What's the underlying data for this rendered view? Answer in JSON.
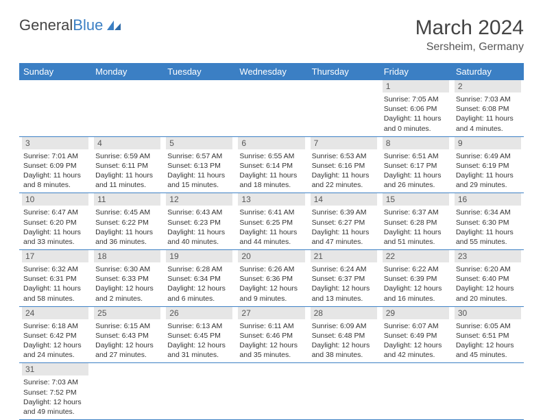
{
  "logo": {
    "text1": "General",
    "text2": "Blue"
  },
  "title": "March 2024",
  "location": "Sersheim, Germany",
  "header_color": "#3b7fc4",
  "daynum_bg": "#e6e6e6",
  "columns": [
    "Sunday",
    "Monday",
    "Tuesday",
    "Wednesday",
    "Thursday",
    "Friday",
    "Saturday"
  ],
  "weeks": [
    [
      null,
      null,
      null,
      null,
      null,
      {
        "n": "1",
        "sunrise": "7:05 AM",
        "sunset": "6:06 PM",
        "day_h": "11",
        "day_m": "0"
      },
      {
        "n": "2",
        "sunrise": "7:03 AM",
        "sunset": "6:08 PM",
        "day_h": "11",
        "day_m": "4"
      }
    ],
    [
      {
        "n": "3",
        "sunrise": "7:01 AM",
        "sunset": "6:09 PM",
        "day_h": "11",
        "day_m": "8"
      },
      {
        "n": "4",
        "sunrise": "6:59 AM",
        "sunset": "6:11 PM",
        "day_h": "11",
        "day_m": "11"
      },
      {
        "n": "5",
        "sunrise": "6:57 AM",
        "sunset": "6:13 PM",
        "day_h": "11",
        "day_m": "15"
      },
      {
        "n": "6",
        "sunrise": "6:55 AM",
        "sunset": "6:14 PM",
        "day_h": "11",
        "day_m": "18"
      },
      {
        "n": "7",
        "sunrise": "6:53 AM",
        "sunset": "6:16 PM",
        "day_h": "11",
        "day_m": "22"
      },
      {
        "n": "8",
        "sunrise": "6:51 AM",
        "sunset": "6:17 PM",
        "day_h": "11",
        "day_m": "26"
      },
      {
        "n": "9",
        "sunrise": "6:49 AM",
        "sunset": "6:19 PM",
        "day_h": "11",
        "day_m": "29"
      }
    ],
    [
      {
        "n": "10",
        "sunrise": "6:47 AM",
        "sunset": "6:20 PM",
        "day_h": "11",
        "day_m": "33"
      },
      {
        "n": "11",
        "sunrise": "6:45 AM",
        "sunset": "6:22 PM",
        "day_h": "11",
        "day_m": "36"
      },
      {
        "n": "12",
        "sunrise": "6:43 AM",
        "sunset": "6:23 PM",
        "day_h": "11",
        "day_m": "40"
      },
      {
        "n": "13",
        "sunrise": "6:41 AM",
        "sunset": "6:25 PM",
        "day_h": "11",
        "day_m": "44"
      },
      {
        "n": "14",
        "sunrise": "6:39 AM",
        "sunset": "6:27 PM",
        "day_h": "11",
        "day_m": "47"
      },
      {
        "n": "15",
        "sunrise": "6:37 AM",
        "sunset": "6:28 PM",
        "day_h": "11",
        "day_m": "51"
      },
      {
        "n": "16",
        "sunrise": "6:34 AM",
        "sunset": "6:30 PM",
        "day_h": "11",
        "day_m": "55"
      }
    ],
    [
      {
        "n": "17",
        "sunrise": "6:32 AM",
        "sunset": "6:31 PM",
        "day_h": "11",
        "day_m": "58"
      },
      {
        "n": "18",
        "sunrise": "6:30 AM",
        "sunset": "6:33 PM",
        "day_h": "12",
        "day_m": "2"
      },
      {
        "n": "19",
        "sunrise": "6:28 AM",
        "sunset": "6:34 PM",
        "day_h": "12",
        "day_m": "6"
      },
      {
        "n": "20",
        "sunrise": "6:26 AM",
        "sunset": "6:36 PM",
        "day_h": "12",
        "day_m": "9"
      },
      {
        "n": "21",
        "sunrise": "6:24 AM",
        "sunset": "6:37 PM",
        "day_h": "12",
        "day_m": "13"
      },
      {
        "n": "22",
        "sunrise": "6:22 AM",
        "sunset": "6:39 PM",
        "day_h": "12",
        "day_m": "16"
      },
      {
        "n": "23",
        "sunrise": "6:20 AM",
        "sunset": "6:40 PM",
        "day_h": "12",
        "day_m": "20"
      }
    ],
    [
      {
        "n": "24",
        "sunrise": "6:18 AM",
        "sunset": "6:42 PM",
        "day_h": "12",
        "day_m": "24"
      },
      {
        "n": "25",
        "sunrise": "6:15 AM",
        "sunset": "6:43 PM",
        "day_h": "12",
        "day_m": "27"
      },
      {
        "n": "26",
        "sunrise": "6:13 AM",
        "sunset": "6:45 PM",
        "day_h": "12",
        "day_m": "31"
      },
      {
        "n": "27",
        "sunrise": "6:11 AM",
        "sunset": "6:46 PM",
        "day_h": "12",
        "day_m": "35"
      },
      {
        "n": "28",
        "sunrise": "6:09 AM",
        "sunset": "6:48 PM",
        "day_h": "12",
        "day_m": "38"
      },
      {
        "n": "29",
        "sunrise": "6:07 AM",
        "sunset": "6:49 PM",
        "day_h": "12",
        "day_m": "42"
      },
      {
        "n": "30",
        "sunrise": "6:05 AM",
        "sunset": "6:51 PM",
        "day_h": "12",
        "day_m": "45"
      }
    ],
    [
      {
        "n": "31",
        "sunrise": "7:03 AM",
        "sunset": "7:52 PM",
        "day_h": "12",
        "day_m": "49"
      },
      null,
      null,
      null,
      null,
      null,
      null
    ]
  ]
}
